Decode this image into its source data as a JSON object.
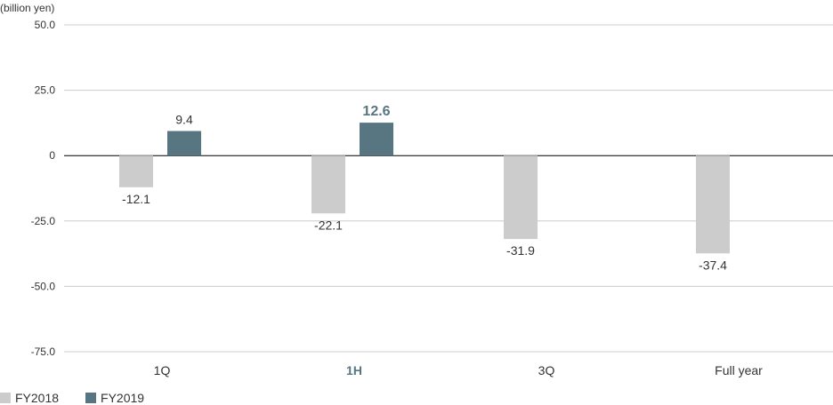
{
  "chart_data": {
    "type": "bar",
    "unit_label": "(billion yen)",
    "categories": [
      "1Q",
      "1H",
      "3Q",
      "Full year"
    ],
    "highlight_category": "1H",
    "y_ticks": [
      "50.0",
      "25.0",
      "0",
      "-25.0",
      "-50.0",
      "-75.0"
    ],
    "ylim": [
      -75,
      50
    ],
    "grid": true,
    "legend_position": "bottom-left",
    "series": [
      {
        "name": "FY2018",
        "color": "#cccccc",
        "values": [
          -12.1,
          -22.1,
          -31.9,
          -37.4
        ],
        "labels": [
          "-12.1",
          "-22.1",
          "-31.9",
          "-37.4"
        ]
      },
      {
        "name": "FY2019",
        "color": "#587582",
        "values": [
          9.4,
          12.6,
          null,
          null
        ],
        "labels": [
          "9.4",
          "12.6",
          "",
          ""
        ]
      }
    ]
  }
}
